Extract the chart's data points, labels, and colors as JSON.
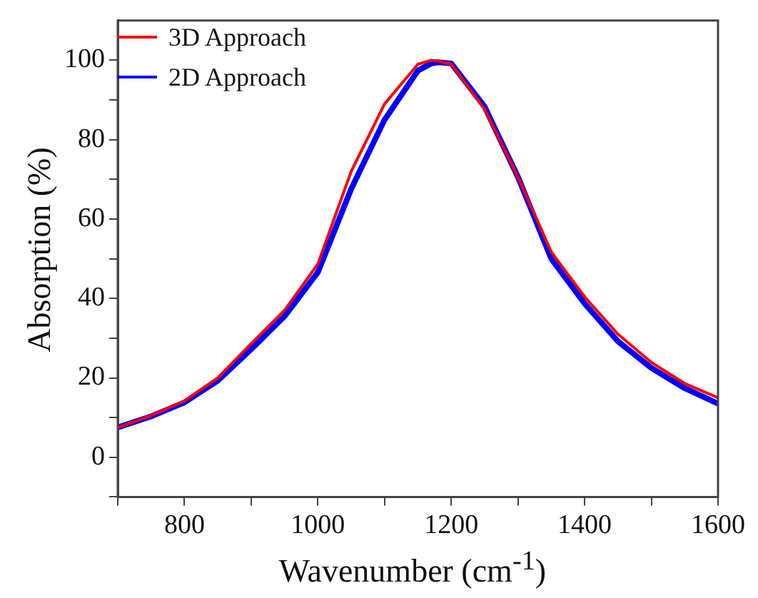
{
  "chart_data": {
    "type": "line",
    "xlabel": "Wavenumber (cm$^{-1}$)",
    "ylabel": "Absorption (%)",
    "xlim": [
      700,
      1600
    ],
    "ylim": [
      -10,
      110
    ],
    "xticks": [
      {
        "value": 700,
        "label": null
      },
      800,
      {
        "value": 900,
        "label": null
      },
      1000,
      {
        "value": 1100,
        "label": null
      },
      1200,
      {
        "value": 1300,
        "label": null
      },
      1400,
      {
        "value": 1500,
        "label": null
      },
      1600
    ],
    "yticks": [
      {
        "value": -10,
        "label": null
      },
      0,
      {
        "value": 10,
        "label": null
      },
      20,
      {
        "value": 30,
        "label": null
      },
      40,
      {
        "value": 50,
        "label": null
      },
      60,
      {
        "value": 70,
        "label": null
      },
      80,
      {
        "value": 90,
        "label": null
      },
      100
    ],
    "grid": false,
    "legend": "top left",
    "marker": "none",
    "line_style": "solid",
    "x": [
      700,
      750,
      800,
      850,
      900,
      950,
      1000,
      1050,
      1100,
      1150,
      1170,
      1180,
      1200,
      1250,
      1300,
      1350,
      1400,
      1450,
      1500,
      1550,
      1600
    ],
    "series": [
      {
        "name": "3D Approach",
        "color": "#ff0000",
        "values": [
          7.5,
          10.5,
          14.2,
          20,
          28.6,
          37,
          48.7,
          72,
          89,
          99,
          100,
          99.8,
          99,
          87.7,
          70.6,
          51.7,
          40.4,
          31,
          23.9,
          18.6,
          15
        ]
      },
      {
        "name": "2D Approach",
        "color": "#0000ff",
        "values": [
          7.5,
          10.3,
          13.8,
          19.3,
          27.2,
          35.5,
          46.6,
          67.6,
          85,
          97.4,
          99.2,
          99.5,
          99.2,
          88.3,
          70.6,
          50,
          38.7,
          29.2,
          22.5,
          17.4,
          13.5
        ]
      }
    ]
  }
}
